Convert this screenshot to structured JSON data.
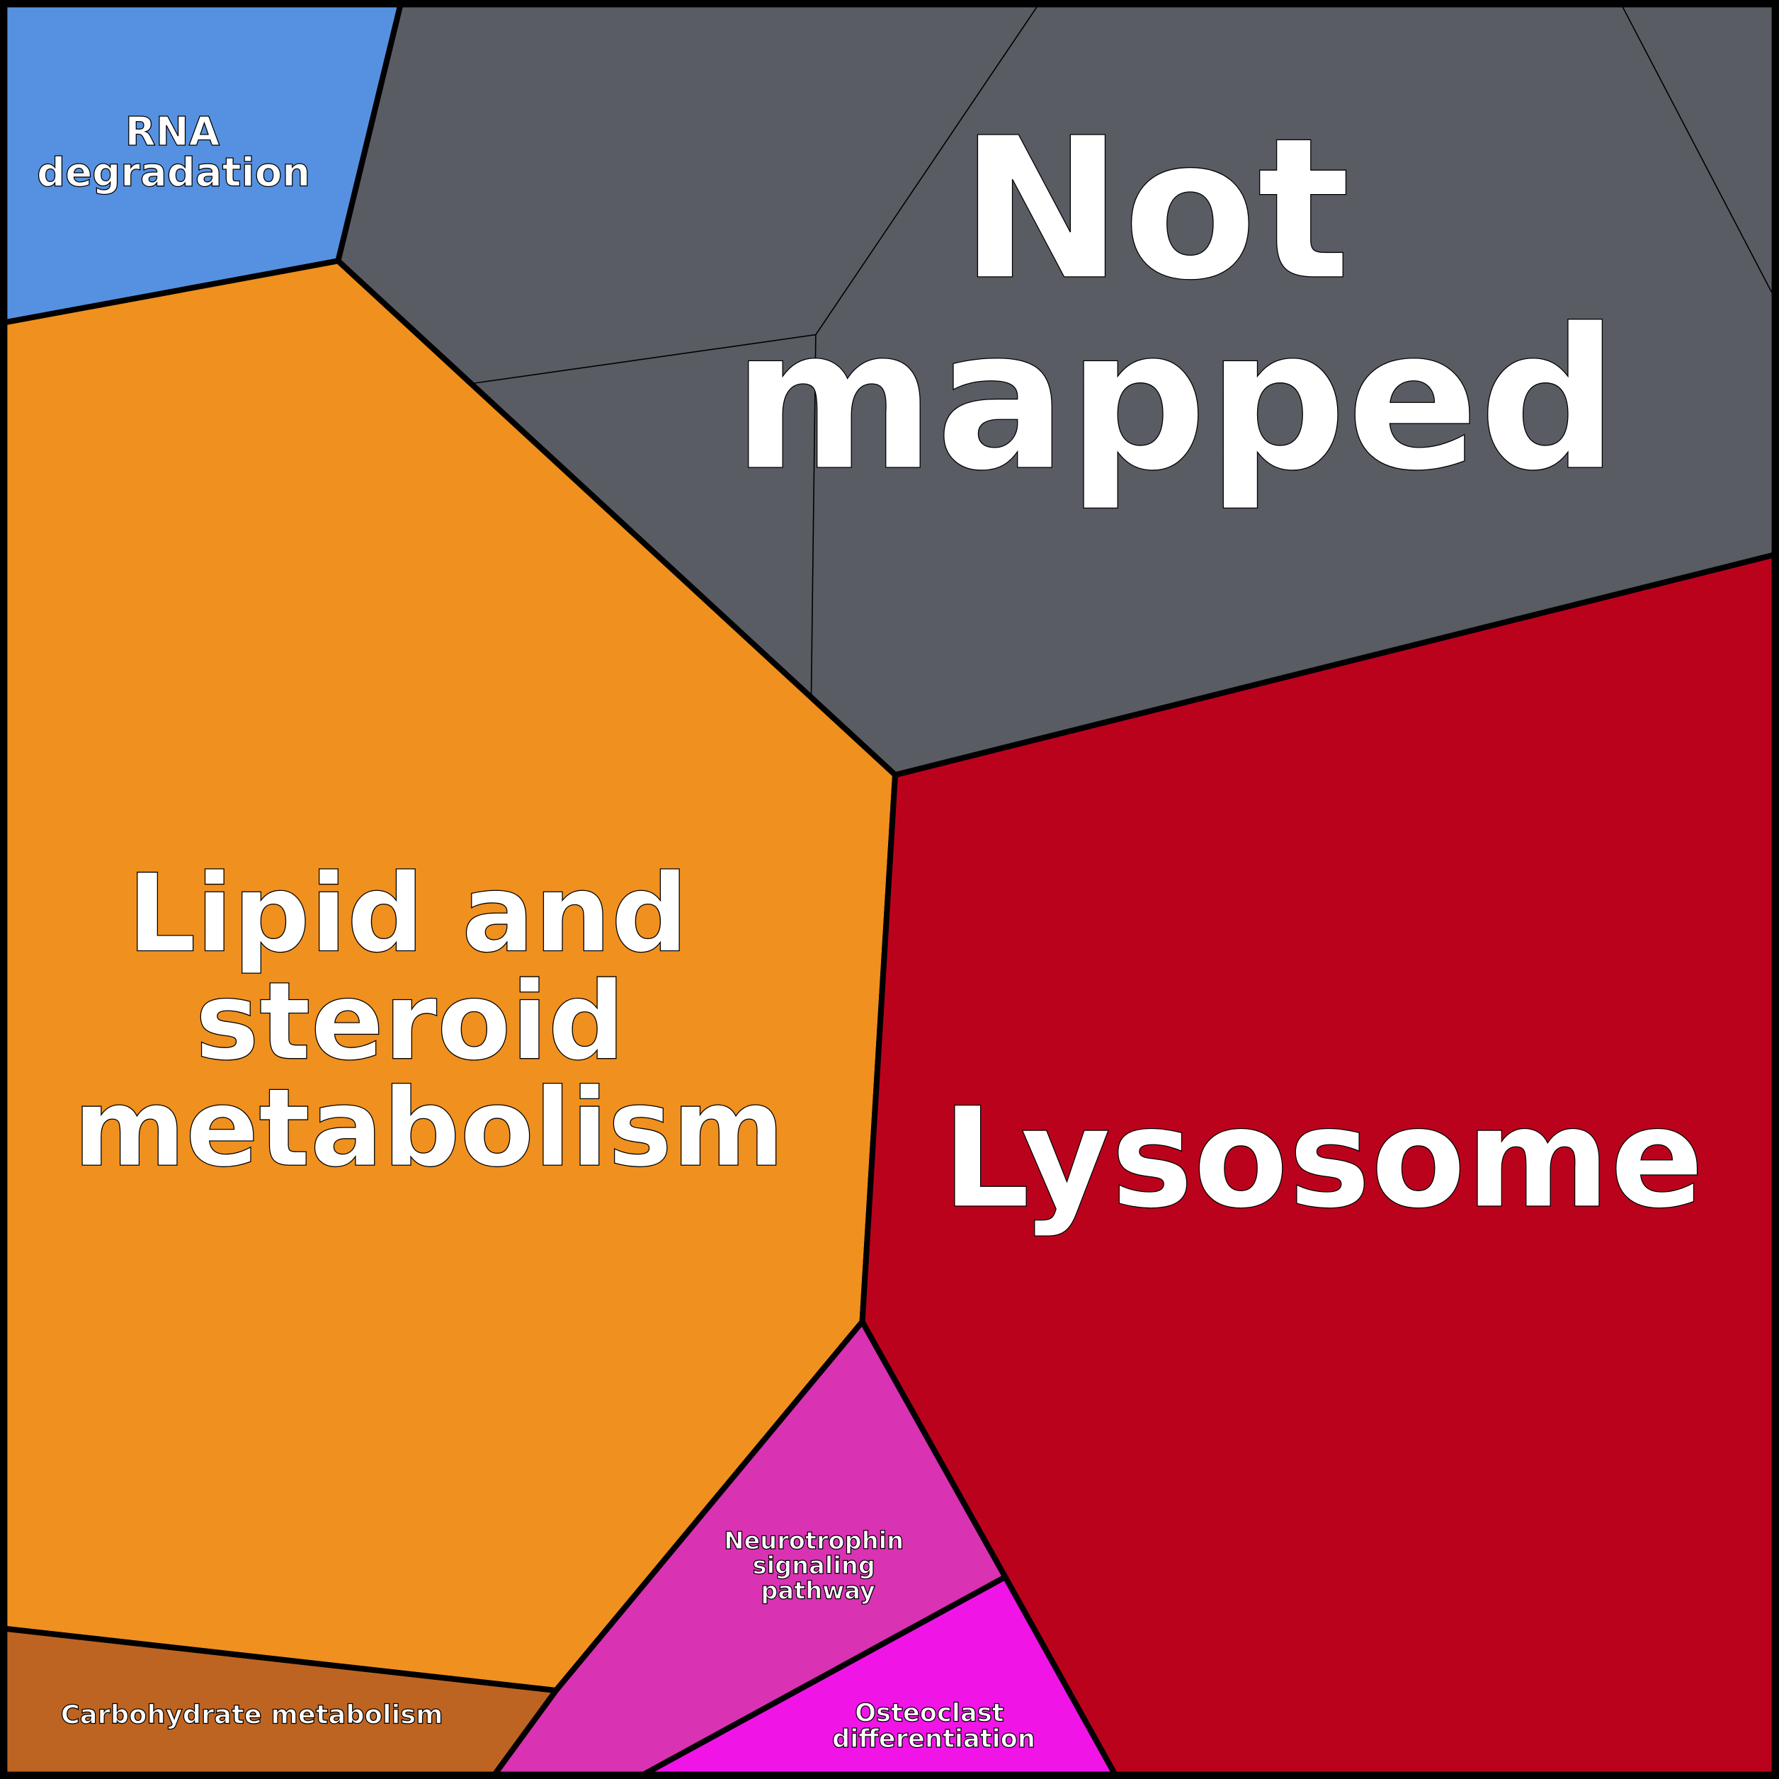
{
  "cells": {
    "rna": {
      "lines": [
        "RNA",
        "degradation"
      ],
      "color": "#5591e0"
    },
    "not_mapped": {
      "lines": [
        "Not",
        "mapped"
      ],
      "color": "#595c63"
    },
    "lipid": {
      "lines": [
        "Lipid and",
        "steroid",
        "metabolism"
      ],
      "color": "#f0901f"
    },
    "lysosome": {
      "lines": [
        "Lysosome"
      ],
      "color": "#bb021c"
    },
    "neurotrophin": {
      "lines": [
        "Neurotrophin",
        "signaling",
        "pathway"
      ],
      "color": "#d932b3"
    },
    "osteoclast": {
      "lines": [
        "Osteoclast",
        "differentiation"
      ],
      "color": "#f014e6"
    },
    "carbohydrate": {
      "lines": [
        "Carbohydrate metabolism"
      ],
      "color": "#bd6422"
    }
  }
}
